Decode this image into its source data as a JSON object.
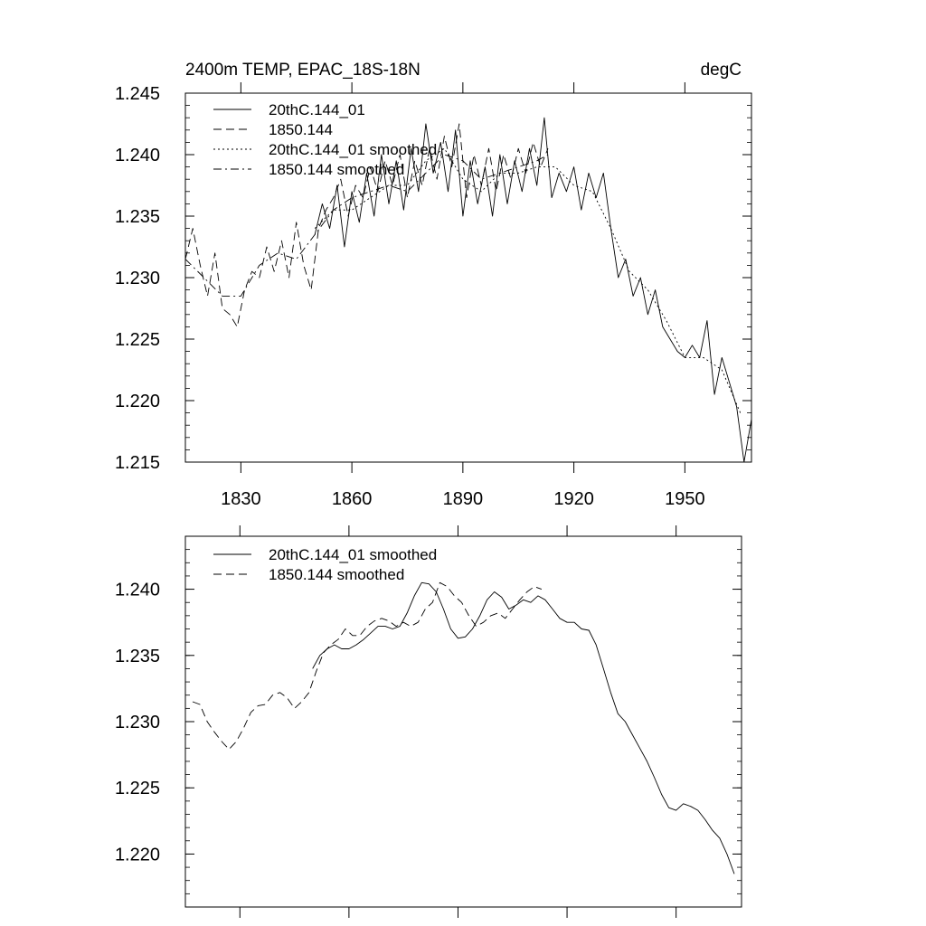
{
  "chart_data": [
    {
      "type": "line",
      "title": "2400m TEMP, EPAC_18S-18N",
      "units": "degC",
      "xlim": [
        1815,
        1968
      ],
      "ylim": [
        1.215,
        1.245
      ],
      "x_ticks": [
        1830,
        1860,
        1890,
        1920,
        1950
      ],
      "x_tick_labels": [
        "1830",
        "1860",
        "1890",
        "1920",
        "1950"
      ],
      "y_ticks": [
        1.215,
        1.22,
        1.225,
        1.23,
        1.235,
        1.24,
        1.245
      ],
      "y_tick_labels": [
        "1.215",
        "1.220",
        "1.225",
        "1.230",
        "1.235",
        "1.240",
        "1.245"
      ],
      "legend": [
        "20thC.144_01",
        "1850.144",
        "20thC.144_01 smoothed",
        "1850.144 smoothed"
      ],
      "series": [
        {
          "name": "20thC.144_01",
          "style": "solid",
          "x": [
            1850,
            1852,
            1854,
            1856,
            1858,
            1860,
            1862,
            1864,
            1866,
            1868,
            1870,
            1872,
            1874,
            1876,
            1878,
            1880,
            1882,
            1884,
            1886,
            1888,
            1890,
            1892,
            1894,
            1896,
            1898,
            1900,
            1902,
            1904,
            1906,
            1908,
            1910,
            1912,
            1914,
            1916,
            1918,
            1920,
            1922,
            1924,
            1926,
            1928,
            1930,
            1932,
            1934,
            1936,
            1938,
            1940,
            1942,
            1944,
            1946,
            1948,
            1950,
            1952,
            1954,
            1956,
            1958,
            1960,
            1962,
            1964,
            1966,
            1968
          ],
          "y": [
            1.2335,
            1.236,
            1.234,
            1.2375,
            1.2325,
            1.237,
            1.2345,
            1.2385,
            1.235,
            1.24,
            1.236,
            1.2395,
            1.2355,
            1.2405,
            1.237,
            1.2425,
            1.2385,
            1.241,
            1.237,
            1.242,
            1.235,
            1.2395,
            1.236,
            1.239,
            1.235,
            1.24,
            1.236,
            1.2395,
            1.237,
            1.2405,
            1.2375,
            1.243,
            1.2365,
            1.2385,
            1.237,
            1.239,
            1.2355,
            1.2385,
            1.2365,
            1.2385,
            1.234,
            1.23,
            1.2315,
            1.2285,
            1.23,
            1.227,
            1.229,
            1.226,
            1.225,
            1.224,
            1.2235,
            1.2245,
            1.2235,
            1.2265,
            1.2205,
            1.2235,
            1.2215,
            1.2195,
            1.215,
            1.2185
          ]
        },
        {
          "name": "1850.144",
          "style": "dashed",
          "x": [
            1815,
            1817,
            1819,
            1821,
            1823,
            1825,
            1827,
            1829,
            1831,
            1833,
            1835,
            1837,
            1839,
            1841,
            1843,
            1845,
            1847,
            1849,
            1851,
            1853,
            1855,
            1857,
            1859,
            1861,
            1863,
            1865,
            1867,
            1869,
            1871,
            1873,
            1875,
            1877,
            1879,
            1881,
            1883,
            1885,
            1887,
            1889,
            1891,
            1893,
            1895,
            1897,
            1899,
            1901,
            1903,
            1905,
            1907,
            1909,
            1911,
            1913
          ],
          "y": [
            1.2315,
            1.234,
            1.231,
            1.2285,
            1.232,
            1.2275,
            1.227,
            1.226,
            1.229,
            1.2305,
            1.23,
            1.2325,
            1.2305,
            1.233,
            1.23,
            1.2345,
            1.231,
            1.229,
            1.234,
            1.2355,
            1.2365,
            1.238,
            1.235,
            1.2375,
            1.2365,
            1.239,
            1.237,
            1.2395,
            1.2375,
            1.24,
            1.2365,
            1.2395,
            1.2375,
            1.2405,
            1.238,
            1.2415,
            1.239,
            1.2425,
            1.2365,
            1.24,
            1.2375,
            1.2405,
            1.237,
            1.24,
            1.238,
            1.2405,
            1.2385,
            1.241,
            1.239,
            1.2405
          ]
        },
        {
          "name": "20thC.144_01 smoothed",
          "style": "dotted",
          "x": [
            1850,
            1855,
            1860,
            1865,
            1870,
            1875,
            1880,
            1885,
            1890,
            1895,
            1900,
            1905,
            1910,
            1915,
            1920,
            1925,
            1930,
            1935,
            1940,
            1945,
            1950,
            1955,
            1960,
            1965
          ],
          "y": [
            1.234,
            1.2355,
            1.2355,
            1.2365,
            1.2375,
            1.2375,
            1.2395,
            1.2405,
            1.238,
            1.237,
            1.2385,
            1.2385,
            1.239,
            1.239,
            1.2375,
            1.237,
            1.234,
            1.2305,
            1.229,
            1.2265,
            1.2235,
            1.2235,
            1.2225,
            1.219
          ]
        },
        {
          "name": "1850.144 smoothed",
          "style": "dashdot",
          "x": [
            1815,
            1820,
            1825,
            1830,
            1835,
            1840,
            1845,
            1850,
            1855,
            1860,
            1865,
            1870,
            1875,
            1880,
            1885,
            1890,
            1895,
            1900,
            1905,
            1910,
            1913
          ],
          "y": [
            1.2315,
            1.23,
            1.2285,
            1.2285,
            1.231,
            1.232,
            1.2315,
            1.2335,
            1.2355,
            1.2365,
            1.237,
            1.2375,
            1.237,
            1.2385,
            1.24,
            1.2395,
            1.238,
            1.2385,
            1.239,
            1.2395,
            1.24
          ]
        }
      ]
    },
    {
      "type": "line",
      "xlim": [
        1815,
        1968
      ],
      "ylim": [
        1.216,
        1.244
      ],
      "x_ticks": [
        1830,
        1860,
        1890,
        1920,
        1950
      ],
      "y_ticks": [
        1.22,
        1.225,
        1.23,
        1.235,
        1.24
      ],
      "y_tick_labels": [
        "1.220",
        "1.225",
        "1.230",
        "1.235",
        "1.240"
      ],
      "legend": [
        "20thC.144_01 smoothed",
        "1850.144 smoothed"
      ],
      "series": [
        {
          "name": "20thC.144_01 smoothed",
          "style": "solid",
          "x": [
            1850,
            1852,
            1854,
            1856,
            1858,
            1860,
            1862,
            1864,
            1866,
            1868,
            1870,
            1872,
            1874,
            1876,
            1878,
            1880,
            1882,
            1884,
            1886,
            1888,
            1890,
            1892,
            1894,
            1896,
            1898,
            1900,
            1902,
            1904,
            1906,
            1908,
            1910,
            1912,
            1914,
            1916,
            1918,
            1920,
            1922,
            1924,
            1926,
            1928,
            1930,
            1932,
            1934,
            1936,
            1938,
            1940,
            1942,
            1944,
            1946,
            1948,
            1950,
            1952,
            1954,
            1956,
            1958,
            1960,
            1962,
            1964,
            1966
          ],
          "y": [
            1.234,
            1.235,
            1.2355,
            1.2358,
            1.2355,
            1.2355,
            1.2358,
            1.2362,
            1.2367,
            1.2372,
            1.2372,
            1.237,
            1.2372,
            1.2382,
            1.2395,
            1.2405,
            1.2404,
            1.2398,
            1.2385,
            1.237,
            1.2363,
            1.2364,
            1.237,
            1.238,
            1.2392,
            1.2398,
            1.2394,
            1.2385,
            1.2388,
            1.2392,
            1.239,
            1.2395,
            1.2392,
            1.2385,
            1.2378,
            1.2375,
            1.2375,
            1.237,
            1.2369,
            1.2358,
            1.234,
            1.2322,
            1.2306,
            1.23,
            1.229,
            1.228,
            1.227,
            1.2258,
            1.2245,
            1.2235,
            1.2233,
            1.2238,
            1.2236,
            1.2233,
            1.2226,
            1.2218,
            1.2212,
            1.22,
            1.2185
          ]
        },
        {
          "name": "1850.144 smoothed",
          "style": "dashed",
          "x": [
            1817,
            1819,
            1821,
            1823,
            1825,
            1827,
            1829,
            1831,
            1833,
            1835,
            1837,
            1839,
            1841,
            1843,
            1845,
            1847,
            1849,
            1851,
            1853,
            1855,
            1857,
            1859,
            1861,
            1863,
            1865,
            1867,
            1869,
            1871,
            1873,
            1875,
            1877,
            1879,
            1881,
            1883,
            1885,
            1887,
            1889,
            1891,
            1893,
            1895,
            1897,
            1899,
            1901,
            1903,
            1905,
            1907,
            1909,
            1911,
            1913
          ],
          "y": [
            1.2315,
            1.2313,
            1.23,
            1.2292,
            1.2285,
            1.2279,
            1.2285,
            1.2295,
            1.2307,
            1.2312,
            1.2313,
            1.232,
            1.2322,
            1.2318,
            1.231,
            1.2315,
            1.2322,
            1.2338,
            1.2352,
            1.2358,
            1.2362,
            1.237,
            1.2365,
            1.2365,
            1.2372,
            1.2376,
            1.2378,
            1.2376,
            1.2372,
            1.2375,
            1.2372,
            1.2375,
            1.2385,
            1.239,
            1.2405,
            1.2402,
            1.2395,
            1.239,
            1.238,
            1.2372,
            1.2375,
            1.238,
            1.2382,
            1.2378,
            1.2385,
            1.2392,
            1.2398,
            1.2402,
            1.24
          ]
        }
      ]
    }
  ]
}
